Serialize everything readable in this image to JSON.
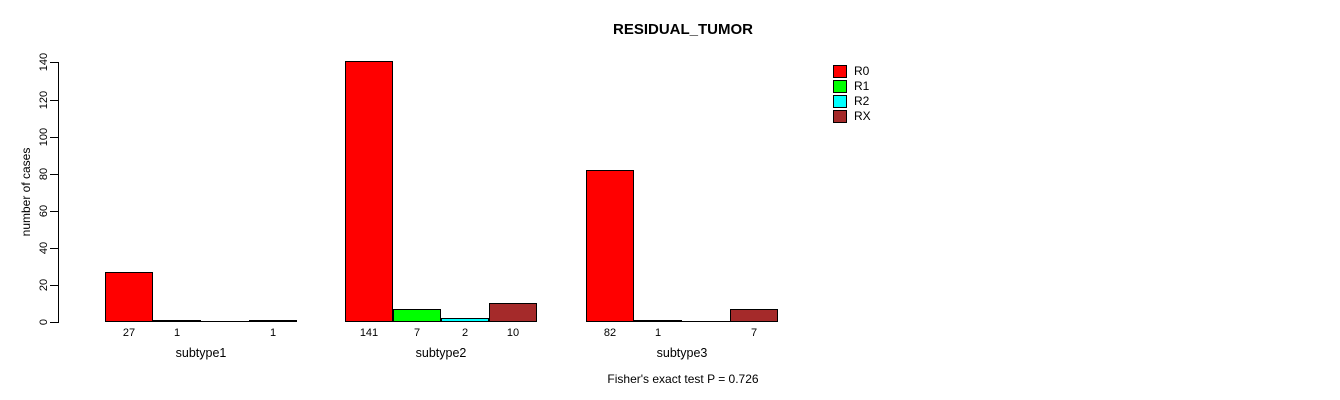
{
  "chart_data": {
    "type": "bar",
    "title": "RESIDUAL_TUMOR",
    "ylabel": "number of cases",
    "xlabel": "",
    "ylim": [
      0,
      140
    ],
    "yticks": [
      0,
      20,
      40,
      60,
      80,
      100,
      120,
      140
    ],
    "grid": false,
    "categories": [
      "subtype1",
      "subtype2",
      "subtype3"
    ],
    "series": [
      {
        "name": "R0",
        "color": "#FF0000",
        "values": [
          27,
          141,
          82
        ]
      },
      {
        "name": "R1",
        "color": "#00FF00",
        "values": [
          1,
          7,
          1
        ]
      },
      {
        "name": "R2",
        "color": "#00FFFF",
        "values": [
          0,
          2,
          0
        ]
      },
      {
        "name": "RX",
        "color": "#A52A2A",
        "values": [
          1,
          10,
          7
        ]
      }
    ],
    "bar_value_labels": [
      [
        "27",
        "1",
        "",
        "1"
      ],
      [
        "141",
        "7",
        "2",
        "10"
      ],
      [
        "82",
        "1",
        "",
        "7"
      ]
    ],
    "legend": {
      "position": "top-right",
      "entries": [
        {
          "label": "R0",
          "color": "#FF0000"
        },
        {
          "label": "R1",
          "color": "#00FF00"
        },
        {
          "label": "R2",
          "color": "#00FFFF"
        },
        {
          "label": "RX",
          "color": "#A52A2A"
        }
      ]
    },
    "annotation": "Fisher's exact test P = 0.726"
  }
}
